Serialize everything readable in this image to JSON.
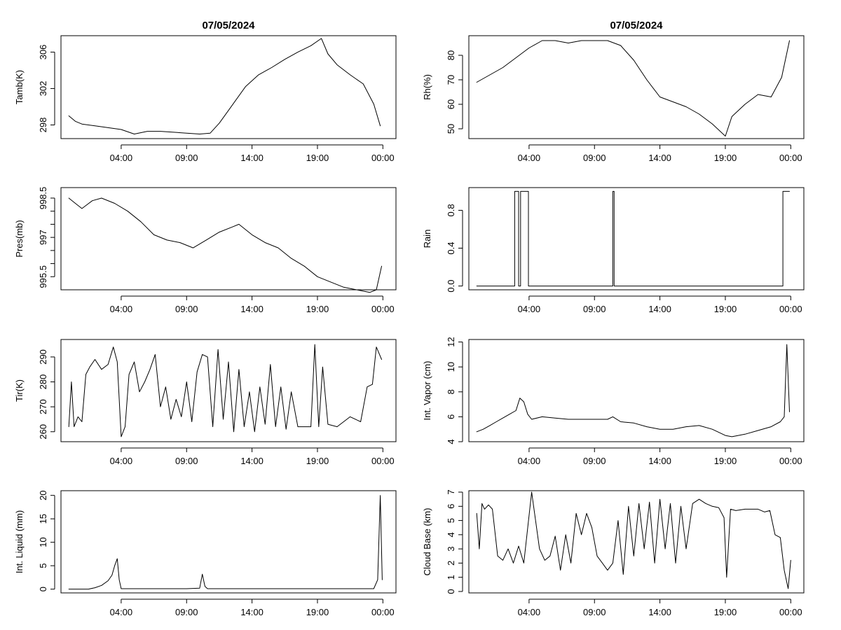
{
  "figure": {
    "background": "#ffffff",
    "line_color": "#000000"
  },
  "chart_data": [
    {
      "type": "line",
      "title": "07/05/2024",
      "xlabel": "",
      "ylabel": "Tamb(K)",
      "x_tick_labels": [
        "04:00",
        "09:00",
        "14:00",
        "19:00",
        "00:00"
      ],
      "x_ticks_hours": [
        4,
        9,
        14,
        19,
        24
      ],
      "xlim_hours": [
        -0.6,
        25
      ],
      "ylim": [
        296.5,
        307.8
      ],
      "y_ticks": [
        298,
        302,
        306
      ],
      "y_tick_labels": [
        "298",
        "302",
        "306"
      ],
      "series": [
        {
          "name": "Tamb(K)",
          "x": [
            0,
            0.5,
            1,
            2,
            3,
            4,
            5,
            6,
            7,
            8,
            9,
            10,
            10.8,
            11.5,
            12.5,
            13.5,
            14.5,
            15.5,
            16.5,
            17.5,
            18.5,
            19.3,
            19.8,
            20.5,
            21.5,
            22.5,
            23.3,
            23.8
          ],
          "y": [
            299.0,
            298.4,
            298.1,
            297.9,
            297.7,
            297.5,
            297.0,
            297.3,
            297.3,
            297.2,
            297.1,
            297.0,
            297.1,
            298.2,
            300.2,
            302.2,
            303.5,
            304.3,
            305.2,
            306.0,
            306.7,
            307.5,
            305.8,
            304.6,
            303.5,
            302.5,
            300.3,
            297.9
          ]
        }
      ]
    },
    {
      "type": "line",
      "title": "07/05/2024",
      "xlabel": "",
      "ylabel": "Rh(%)",
      "x_tick_labels": [
        "04:00",
        "09:00",
        "14:00",
        "19:00",
        "00:00"
      ],
      "x_ticks_hours": [
        4,
        9,
        14,
        19,
        24
      ],
      "xlim_hours": [
        -0.6,
        25
      ],
      "ylim": [
        46,
        88
      ],
      "y_ticks": [
        50,
        60,
        70,
        80
      ],
      "y_tick_labels": [
        "50",
        "60",
        "70",
        "80"
      ],
      "series": [
        {
          "name": "Rh(%)",
          "x": [
            0,
            1,
            2,
            3,
            4,
            5,
            6,
            7,
            8,
            9,
            10,
            11,
            12,
            13,
            14,
            15,
            16,
            17,
            18,
            19,
            19.5,
            20.5,
            21.5,
            22.5,
            23.3,
            23.9
          ],
          "y": [
            69,
            72,
            75,
            79,
            83,
            86,
            86,
            85,
            86,
            86,
            86,
            84,
            78,
            70,
            63,
            61,
            59,
            56,
            52,
            47,
            55,
            60,
            64,
            63,
            71,
            86
          ]
        }
      ]
    },
    {
      "type": "line",
      "title": "",
      "xlabel": "",
      "ylabel": "Pres(mb)",
      "x_tick_labels": [
        "04:00",
        "09:00",
        "14:00",
        "19:00",
        "00:00"
      ],
      "x_ticks_hours": [
        4,
        9,
        14,
        19,
        24
      ],
      "xlim_hours": [
        -0.6,
        25
      ],
      "ylim": [
        995.0,
        998.9
      ],
      "y_ticks": [
        995.5,
        997.0,
        998.5
      ],
      "y_tick_labels": [
        "995.5",
        "997",
        "998.5"
      ],
      "y_minor_ticks": [
        996.0,
        996.5,
        997.5,
        998.0
      ],
      "series": [
        {
          "name": "Pres(mb)",
          "x": [
            0,
            0.5,
            1,
            1.8,
            2.5,
            3.5,
            4.5,
            5.5,
            6.5,
            7.5,
            8.5,
            9.5,
            10.5,
            11.5,
            12.5,
            13,
            14,
            15,
            16,
            17,
            18,
            19,
            20,
            21,
            22,
            23,
            23.5,
            23.9
          ],
          "y": [
            998.5,
            998.3,
            998.1,
            998.4,
            998.5,
            998.3,
            998.0,
            997.6,
            997.1,
            996.9,
            996.8,
            996.6,
            996.9,
            997.2,
            997.4,
            997.5,
            997.1,
            996.8,
            996.6,
            996.2,
            995.9,
            995.5,
            995.3,
            995.1,
            995.0,
            994.9,
            995.0,
            995.9
          ]
        }
      ]
    },
    {
      "type": "line",
      "title": "",
      "xlabel": "",
      "ylabel": "Rain",
      "x_tick_labels": [
        "04:00",
        "09:00",
        "14:00",
        "19:00",
        "00:00"
      ],
      "x_ticks_hours": [
        4,
        9,
        14,
        19,
        24
      ],
      "xlim_hours": [
        -0.6,
        25
      ],
      "ylim": [
        -0.04,
        1.04
      ],
      "y_ticks": [
        0.0,
        0.4,
        0.8
      ],
      "y_tick_labels": [
        "0.0",
        "0.4",
        "0.8"
      ],
      "series": [
        {
          "name": "Rain",
          "x": [
            0,
            2.9,
            2.9,
            3.2,
            3.2,
            3.35,
            3.35,
            3.95,
            3.95,
            10.4,
            10.4,
            10.5,
            10.5,
            23.4,
            23.4,
            23.9
          ],
          "y": [
            0,
            0,
            1,
            1,
            0,
            0,
            1,
            1,
            0,
            0,
            1,
            1,
            0,
            0,
            1,
            1
          ]
        }
      ]
    },
    {
      "type": "line",
      "title": "",
      "xlabel": "",
      "ylabel": "Tir(K)",
      "x_tick_labels": [
        "04:00",
        "09:00",
        "14:00",
        "19:00",
        "00:00"
      ],
      "x_ticks_hours": [
        4,
        9,
        14,
        19,
        24
      ],
      "xlim_hours": [
        -0.6,
        25
      ],
      "ylim": [
        256,
        297
      ],
      "y_ticks": [
        260,
        270,
        280,
        290
      ],
      "y_tick_labels": [
        "260",
        "270",
        "280",
        "290"
      ],
      "series": [
        {
          "name": "Tir(K)",
          "x": [
            0,
            0.2,
            0.4,
            0.7,
            1,
            1.3,
            1.6,
            2,
            2.5,
            3,
            3.4,
            3.7,
            4,
            4.3,
            4.6,
            5,
            5.4,
            5.8,
            6.2,
            6.6,
            7,
            7.4,
            7.8,
            8.2,
            8.6,
            9,
            9.4,
            9.8,
            10.2,
            10.6,
            11,
            11.4,
            11.8,
            12.2,
            12.6,
            13,
            13.4,
            13.8,
            14.2,
            14.6,
            15,
            15.4,
            15.8,
            16.2,
            16.6,
            17,
            17.5,
            18,
            18.5,
            18.8,
            19.1,
            19.4,
            19.8,
            20.5,
            21.5,
            22.3,
            22.8,
            23.2,
            23.5,
            23.9
          ],
          "y": [
            262,
            280,
            262,
            266,
            264,
            283,
            286,
            289,
            285,
            287,
            294,
            288,
            258,
            262,
            283,
            288,
            276,
            280,
            285,
            291,
            270,
            278,
            265,
            273,
            266,
            280,
            264,
            284,
            291,
            290,
            262,
            293,
            265,
            288,
            260,
            285,
            262,
            276,
            260,
            278,
            263,
            287,
            262,
            278,
            261,
            276,
            262,
            262,
            262,
            295,
            262,
            286,
            263,
            262,
            266,
            264,
            278,
            279,
            294,
            289
          ]
        }
      ]
    },
    {
      "type": "line",
      "title": "",
      "xlabel": "",
      "ylabel": "Int. Vapor (cm)",
      "x_tick_labels": [
        "04:00",
        "09:00",
        "14:00",
        "19:00",
        "00:00"
      ],
      "x_ticks_hours": [
        4,
        9,
        14,
        19,
        24
      ],
      "xlim_hours": [
        -0.6,
        25
      ],
      "ylim": [
        4,
        12.2
      ],
      "y_ticks": [
        4,
        6,
        8,
        10,
        12
      ],
      "y_tick_labels": [
        "4",
        "6",
        "8",
        "10",
        "12"
      ],
      "series": [
        {
          "name": "Int. Vapor (cm)",
          "x": [
            0,
            0.5,
            1,
            1.5,
            2,
            2.5,
            3,
            3.3,
            3.6,
            3.9,
            4.2,
            5,
            6,
            7,
            8,
            9,
            10,
            10.4,
            11,
            12,
            13,
            14,
            15,
            16,
            17,
            18,
            19,
            19.5,
            20.5,
            21.5,
            22.5,
            23.2,
            23.5,
            23.7,
            23.9
          ],
          "y": [
            4.8,
            5.0,
            5.3,
            5.6,
            5.9,
            6.2,
            6.5,
            7.5,
            7.2,
            6.2,
            5.8,
            6.0,
            5.9,
            5.8,
            5.8,
            5.8,
            5.8,
            6.0,
            5.6,
            5.5,
            5.2,
            5.0,
            5.0,
            5.2,
            5.3,
            5.0,
            4.5,
            4.4,
            4.6,
            4.9,
            5.2,
            5.6,
            6.0,
            11.8,
            6.4
          ]
        }
      ]
    },
    {
      "type": "line",
      "title": "",
      "xlabel": "",
      "ylabel": "Int. Liquid (mm)",
      "x_tick_labels": [
        "04:00",
        "09:00",
        "14:00",
        "19:00",
        "00:00"
      ],
      "x_ticks_hours": [
        4,
        9,
        14,
        19,
        24
      ],
      "xlim_hours": [
        -0.6,
        25
      ],
      "ylim": [
        -0.8,
        21
      ],
      "y_ticks": [
        0,
        5,
        10,
        15,
        20
      ],
      "y_tick_labels": [
        "0",
        "5",
        "10",
        "15",
        "20"
      ],
      "series": [
        {
          "name": "Int. Liquid (mm)",
          "x": [
            0,
            1.5,
            2,
            2.5,
            3,
            3.3,
            3.5,
            3.7,
            3.85,
            4,
            6,
            9,
            10,
            10.2,
            10.4,
            10.6,
            12,
            15,
            18,
            21,
            22,
            23.3,
            23.6,
            23.8,
            23.95
          ],
          "y": [
            0,
            0,
            0.3,
            0.8,
            1.8,
            3.0,
            5.0,
            6.5,
            2.0,
            0.1,
            0.1,
            0.1,
            0.2,
            3.2,
            0.6,
            0.1,
            0.1,
            0.1,
            0.1,
            0.1,
            0.1,
            0.1,
            2.0,
            20.0,
            2.0
          ]
        }
      ]
    },
    {
      "type": "line",
      "title": "",
      "xlabel": "",
      "ylabel": "Cloud Base (km)",
      "x_tick_labels": [
        "04:00",
        "09:00",
        "14:00",
        "19:00",
        "00:00"
      ],
      "x_ticks_hours": [
        4,
        9,
        14,
        19,
        24
      ],
      "xlim_hours": [
        -0.6,
        25
      ],
      "ylim": [
        -0.1,
        7.1
      ],
      "y_ticks": [
        0,
        1,
        2,
        3,
        4,
        5,
        6,
        7
      ],
      "y_tick_labels": [
        "0",
        "1",
        "2",
        "3",
        "4",
        "5",
        "6",
        "7"
      ],
      "series": [
        {
          "name": "Cloud Base (km)",
          "x": [
            0,
            0.2,
            0.4,
            0.6,
            0.9,
            1.2,
            1.6,
            2,
            2.4,
            2.8,
            3.2,
            3.6,
            3.9,
            4.2,
            4.5,
            4.8,
            5.2,
            5.6,
            6,
            6.4,
            6.8,
            7.2,
            7.6,
            8,
            8.4,
            8.8,
            9.2,
            9.6,
            10,
            10.4,
            10.8,
            11.2,
            11.6,
            12,
            12.4,
            12.8,
            13.2,
            13.6,
            14,
            14.4,
            14.8,
            15.2,
            15.6,
            16,
            16.5,
            17,
            17.5,
            18,
            18.5,
            18.9,
            19.1,
            19.4,
            19.8,
            20.5,
            21.5,
            22,
            22.4,
            22.8,
            23.2,
            23.5,
            23.8,
            24
          ],
          "y": [
            5.5,
            3.0,
            6.2,
            5.8,
            6.1,
            5.8,
            2.5,
            2.2,
            3.0,
            2.0,
            3.2,
            2.0,
            4.5,
            7.0,
            5.0,
            3.0,
            2.2,
            2.5,
            3.9,
            1.5,
            4.0,
            2.0,
            5.5,
            4.0,
            5.5,
            4.5,
            2.5,
            2.0,
            1.5,
            2.0,
            5.0,
            1.2,
            6.0,
            2.5,
            6.2,
            3.0,
            6.3,
            2.0,
            6.5,
            3.0,
            6.2,
            2.0,
            6.0,
            3.0,
            6.2,
            6.5,
            6.2,
            6.0,
            5.9,
            5.2,
            1.0,
            5.8,
            5.7,
            5.8,
            5.8,
            5.6,
            5.7,
            4.0,
            3.8,
            1.5,
            0.2,
            2.2
          ]
        }
      ]
    }
  ]
}
